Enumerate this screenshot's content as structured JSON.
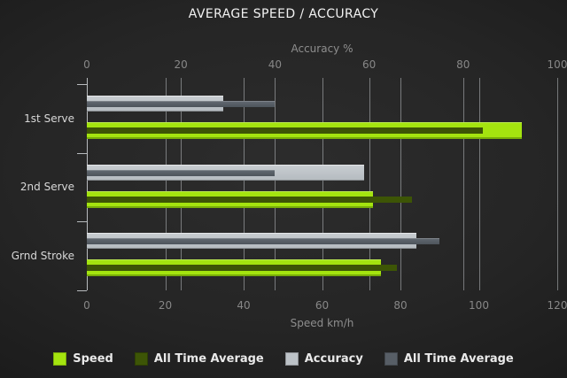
{
  "title": "AVERAGE SPEED / ACCURACY",
  "chart_data": {
    "type": "bar",
    "orientation": "horizontal",
    "title": "AVERAGE SPEED / ACCURACY",
    "categories": [
      "1st Serve",
      "2nd Serve",
      "Grnd Stroke"
    ],
    "axes": {
      "top": {
        "label": "Accuracy %",
        "min": 0,
        "max": 100,
        "ticks": [
          0,
          20,
          40,
          60,
          80,
          100
        ]
      },
      "bottom": {
        "label": "Speed km/h",
        "min": 0,
        "max": 120,
        "ticks": [
          0,
          20,
          40,
          60,
          80,
          100,
          120
        ]
      }
    },
    "series": [
      {
        "name": "Speed",
        "axis": "bottom",
        "role": "main",
        "color": "#a4e40f",
        "values": [
          111,
          73,
          75
        ]
      },
      {
        "name": "All Time Average",
        "axis": "bottom",
        "role": "overlay",
        "color": "#3d5506",
        "values": [
          101,
          83,
          79
        ]
      },
      {
        "name": "Accuracy",
        "axis": "top",
        "role": "main",
        "color": "#bcc2c7",
        "values": [
          29,
          59,
          70
        ]
      },
      {
        "name": "All Time Average",
        "axis": "top",
        "role": "overlay",
        "color": "#575e66",
        "values": [
          40,
          40,
          75
        ]
      }
    ],
    "legend_position": "bottom",
    "grid": true
  },
  "colors": {
    "background_center": "#2d2d2d",
    "background_edge": "#0c0c0c",
    "speed": "#a4e40f",
    "speed_all_time_average": "#3d5506",
    "accuracy": "#bcc2c7",
    "accuracy_all_time_average": "#575e66",
    "gridline": "#9aa0a5",
    "title_text": "#f2f2f2",
    "axis_text": "#8e8e8e",
    "category_text": "#d8d8d8",
    "legend_text": "#e9e9e9"
  }
}
